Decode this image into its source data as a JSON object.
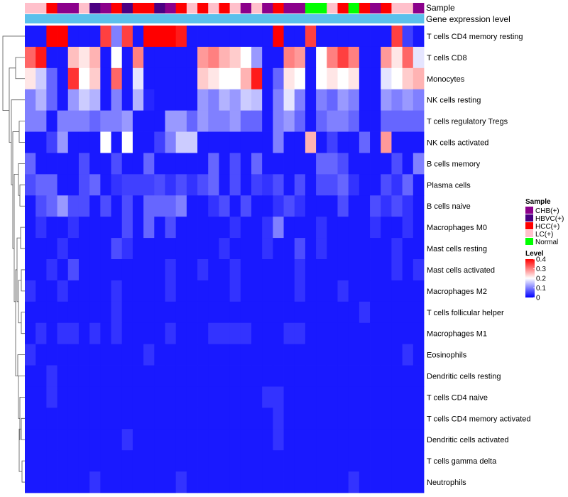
{
  "chart_data": {
    "type": "heatmap",
    "title": "",
    "track_labels": {
      "sample": "Sample",
      "gene_expression": "Gene expression level"
    },
    "rows": [
      "T cells CD4 memory resting",
      "T cells CD8",
      "Monocytes",
      "NK cells resting",
      "T cells regulatory  Tregs",
      "NK cells activated",
      "B cells memory",
      "Plasma cells",
      "B cells naive",
      "Macrophages M0",
      "Mast cells resting",
      "Mast cells activated",
      "Macrophages M2",
      "T cells follicular helper",
      "Macrophages M1",
      "Eosinophils",
      "Dendritic cells resting",
      "T cells CD4 naive",
      "T cells CD4 memory activated",
      "Dendritic cells activated",
      "T cells gamma delta",
      "Neutrophils"
    ],
    "sample_annotation": [
      "LC(+)",
      "LC(+)",
      "HCC(+)",
      "CHB(+)",
      "CHB(+)",
      "LC(+)",
      "HBVC(+)",
      "CHB(+)",
      "HCC(+)",
      "HBVC(+)",
      "HCC(+)",
      "HCC(+)",
      "HBVC(+)",
      "CHB(+)",
      "HCC(+)",
      "LC(+)",
      "HCC(+)",
      "LC(+)",
      "HCC(+)",
      "LC(+)",
      "CHB(+)",
      "LC(+)",
      "CHB(+)",
      "HCC(+)",
      "CHB(+)",
      "CHB(+)",
      "Normal",
      "Normal",
      "LC(+)",
      "HCC(+)",
      "Normal",
      "HCC(+)",
      "CHB(+)",
      "HCC(+)",
      "LC(+)",
      "LC(+)",
      "CHB(+)"
    ],
    "gene_expression_level": [
      "skyblue",
      "skyblue",
      "skyblue",
      "skyblue",
      "skyblue",
      "skyblue",
      "skyblue",
      "skyblue",
      "skyblue",
      "skyblue",
      "skyblue",
      "skyblue",
      "skyblue",
      "skyblue",
      "skyblue",
      "skyblue",
      "skyblue",
      "skyblue",
      "skyblue",
      "skyblue",
      "skyblue",
      "skyblue",
      "skyblue",
      "skyblue",
      "skyblue",
      "skyblue",
      "skyblue",
      "skyblue",
      "skyblue",
      "skyblue",
      "skyblue",
      "skyblue",
      "skyblue",
      "skyblue",
      "skyblue",
      "skyblue",
      "skyblue"
    ],
    "values": [
      [
        0.02,
        0.02,
        0.4,
        0.4,
        0.02,
        0.02,
        0.02,
        0.35,
        0.1,
        0.35,
        0.02,
        0.4,
        0.4,
        0.4,
        0.38,
        0.02,
        0.02,
        0.02,
        0.02,
        0.02,
        0.02,
        0.02,
        0.02,
        0.4,
        0.02,
        0.02,
        0.35,
        0.02,
        0.02,
        0.02,
        0.02,
        0.02,
        0.02,
        0.02,
        0.35,
        0.05,
        0.02
      ],
      [
        0.32,
        0.38,
        0.02,
        0.02,
        0.25,
        0.22,
        0.26,
        0.02,
        0.2,
        0.02,
        0.3,
        0.02,
        0.02,
        0.02,
        0.02,
        0.02,
        0.28,
        0.3,
        0.26,
        0.24,
        0.2,
        0.12,
        0.02,
        0.02,
        0.3,
        0.28,
        0.02,
        0.2,
        0.3,
        0.35,
        0.3,
        0.02,
        0.02,
        0.28,
        0.22,
        0.32,
        0.18
      ],
      [
        0.22,
        0.16,
        0.08,
        0.02,
        0.36,
        0.2,
        0.24,
        0.02,
        0.32,
        0.02,
        0.18,
        0.02,
        0.02,
        0.02,
        0.02,
        0.02,
        0.24,
        0.22,
        0.2,
        0.2,
        0.26,
        0.38,
        0.02,
        0.08,
        0.22,
        0.2,
        0.02,
        0.2,
        0.22,
        0.2,
        0.22,
        0.02,
        0.02,
        0.18,
        0.2,
        0.24,
        0.26
      ],
      [
        0.1,
        0.14,
        0.08,
        0.02,
        0.12,
        0.16,
        0.14,
        0.02,
        0.1,
        0.02,
        0.14,
        0.03,
        0.02,
        0.02,
        0.02,
        0.02,
        0.12,
        0.1,
        0.14,
        0.12,
        0.16,
        0.15,
        0.02,
        0.1,
        0.18,
        0.1,
        0.02,
        0.1,
        0.08,
        0.12,
        0.1,
        0.02,
        0.02,
        0.12,
        0.1,
        0.12,
        0.1
      ],
      [
        0.1,
        0.1,
        0.02,
        0.1,
        0.1,
        0.1,
        0.08,
        0.1,
        0.1,
        0.12,
        0.02,
        0.02,
        0.02,
        0.12,
        0.12,
        0.08,
        0.12,
        0.1,
        0.1,
        0.12,
        0.08,
        0.08,
        0.02,
        0.1,
        0.12,
        0.08,
        0.02,
        0.08,
        0.1,
        0.1,
        0.08,
        0.02,
        0.02,
        0.08,
        0.08,
        0.08,
        0.08
      ],
      [
        0.02,
        0.02,
        0.05,
        0.12,
        0.02,
        0.02,
        0.02,
        0.2,
        0.02,
        0.2,
        0.02,
        0.02,
        0.05,
        0.1,
        0.16,
        0.16,
        0.02,
        0.02,
        0.02,
        0.02,
        0.02,
        0.02,
        0.02,
        0.1,
        0.02,
        0.02,
        0.26,
        0.02,
        0.05,
        0.02,
        0.02,
        0.08,
        0.02,
        0.28,
        0.02,
        0.02,
        0.02
      ],
      [
        0.08,
        0.02,
        0.02,
        0.02,
        0.02,
        0.06,
        0.02,
        0.02,
        0.06,
        0.02,
        0.02,
        0.08,
        0.02,
        0.02,
        0.02,
        0.02,
        0.02,
        0.08,
        0.02,
        0.06,
        0.02,
        0.08,
        0.02,
        0.02,
        0.02,
        0.02,
        0.02,
        0.08,
        0.08,
        0.06,
        0.02,
        0.02,
        0.02,
        0.02,
        0.06,
        0.02,
        0.1
      ],
      [
        0.06,
        0.08,
        0.08,
        0.02,
        0.02,
        0.06,
        0.08,
        0.02,
        0.04,
        0.05,
        0.05,
        0.05,
        0.06,
        0.04,
        0.06,
        0.04,
        0.06,
        0.08,
        0.02,
        0.06,
        0.02,
        0.05,
        0.04,
        0.06,
        0.02,
        0.06,
        0.02,
        0.06,
        0.06,
        0.08,
        0.04,
        0.02,
        0.02,
        0.06,
        0.04,
        0.08,
        0.02
      ],
      [
        0.02,
        0.06,
        0.08,
        0.12,
        0.06,
        0.06,
        0.02,
        0.06,
        0.02,
        0.06,
        0.02,
        0.08,
        0.08,
        0.08,
        0.1,
        0.02,
        0.02,
        0.04,
        0.06,
        0.02,
        0.06,
        0.02,
        0.02,
        0.04,
        0.06,
        0.04,
        0.02,
        0.02,
        0.02,
        0.06,
        0.02,
        0.02,
        0.06,
        0.04,
        0.06,
        0.04,
        0.02
      ],
      [
        0.02,
        0.04,
        0.02,
        0.02,
        0.04,
        0.02,
        0.02,
        0.02,
        0.02,
        0.06,
        0.02,
        0.08,
        0.02,
        0.06,
        0.02,
        0.02,
        0.02,
        0.02,
        0.02,
        0.04,
        0.02,
        0.02,
        0.04,
        0.1,
        0.02,
        0.02,
        0.02,
        0.04,
        0.02,
        0.02,
        0.02,
        0.02,
        0.04,
        0.02,
        0.02,
        0.04,
        0.02
      ],
      [
        0.02,
        0.02,
        0.02,
        0.04,
        0.02,
        0.02,
        0.02,
        0.02,
        0.06,
        0.04,
        0.02,
        0.02,
        0.02,
        0.02,
        0.02,
        0.02,
        0.02,
        0.02,
        0.04,
        0.02,
        0.02,
        0.02,
        0.04,
        0.02,
        0.02,
        0.06,
        0.02,
        0.04,
        0.02,
        0.02,
        0.02,
        0.02,
        0.02,
        0.02,
        0.04,
        0.02,
        0.02
      ],
      [
        0.02,
        0.02,
        0.04,
        0.02,
        0.06,
        0.02,
        0.02,
        0.02,
        0.02,
        0.02,
        0.02,
        0.02,
        0.02,
        0.04,
        0.02,
        0.02,
        0.04,
        0.02,
        0.02,
        0.04,
        0.02,
        0.02,
        0.02,
        0.02,
        0.02,
        0.04,
        0.02,
        0.02,
        0.02,
        0.02,
        0.02,
        0.02,
        0.02,
        0.02,
        0.04,
        0.02,
        0.04
      ],
      [
        0.04,
        0.02,
        0.02,
        0.04,
        0.02,
        0.02,
        0.02,
        0.02,
        0.04,
        0.02,
        0.02,
        0.02,
        0.02,
        0.04,
        0.02,
        0.02,
        0.02,
        0.02,
        0.02,
        0.04,
        0.02,
        0.02,
        0.02,
        0.02,
        0.02,
        0.04,
        0.02,
        0.02,
        0.02,
        0.04,
        0.02,
        0.02,
        0.02,
        0.02,
        0.02,
        0.02,
        0.02
      ],
      [
        0.02,
        0.02,
        0.02,
        0.02,
        0.02,
        0.02,
        0.02,
        0.02,
        0.04,
        0.02,
        0.02,
        0.02,
        0.02,
        0.02,
        0.02,
        0.02,
        0.02,
        0.02,
        0.02,
        0.02,
        0.02,
        0.02,
        0.02,
        0.02,
        0.02,
        0.02,
        0.02,
        0.02,
        0.02,
        0.02,
        0.02,
        0.04,
        0.02,
        0.02,
        0.02,
        0.02,
        0.02
      ],
      [
        0.02,
        0.04,
        0.02,
        0.04,
        0.04,
        0.02,
        0.04,
        0.02,
        0.04,
        0.02,
        0.02,
        0.02,
        0.02,
        0.04,
        0.02,
        0.02,
        0.02,
        0.04,
        0.04,
        0.04,
        0.04,
        0.02,
        0.02,
        0.02,
        0.04,
        0.04,
        0.02,
        0.02,
        0.02,
        0.02,
        0.02,
        0.02,
        0.02,
        0.02,
        0.02,
        0.02,
        0.02
      ],
      [
        0.04,
        0.02,
        0.02,
        0.02,
        0.02,
        0.02,
        0.02,
        0.02,
        0.02,
        0.02,
        0.02,
        0.04,
        0.02,
        0.02,
        0.02,
        0.02,
        0.02,
        0.02,
        0.02,
        0.02,
        0.02,
        0.02,
        0.02,
        0.02,
        0.02,
        0.02,
        0.02,
        0.02,
        0.02,
        0.02,
        0.02,
        0.02,
        0.02,
        0.02,
        0.02,
        0.04,
        0.02
      ],
      [
        0.02,
        0.02,
        0.04,
        0.02,
        0.02,
        0.02,
        0.02,
        0.02,
        0.02,
        0.02,
        0.02,
        0.02,
        0.02,
        0.02,
        0.02,
        0.02,
        0.02,
        0.02,
        0.02,
        0.02,
        0.02,
        0.02,
        0.02,
        0.02,
        0.02,
        0.02,
        0.02,
        0.02,
        0.02,
        0.02,
        0.02,
        0.02,
        0.02,
        0.02,
        0.02,
        0.02,
        0.02
      ],
      [
        0.02,
        0.02,
        0.04,
        0.02,
        0.02,
        0.02,
        0.02,
        0.02,
        0.02,
        0.02,
        0.02,
        0.02,
        0.02,
        0.02,
        0.02,
        0.02,
        0.02,
        0.02,
        0.02,
        0.02,
        0.02,
        0.02,
        0.04,
        0.04,
        0.02,
        0.02,
        0.02,
        0.02,
        0.02,
        0.02,
        0.02,
        0.02,
        0.02,
        0.02,
        0.02,
        0.02,
        0.02
      ],
      [
        0.02,
        0.02,
        0.02,
        0.02,
        0.02,
        0.02,
        0.02,
        0.02,
        0.02,
        0.02,
        0.02,
        0.02,
        0.02,
        0.02,
        0.02,
        0.02,
        0.02,
        0.02,
        0.02,
        0.02,
        0.02,
        0.02,
        0.02,
        0.04,
        0.02,
        0.02,
        0.02,
        0.02,
        0.02,
        0.02,
        0.02,
        0.02,
        0.02,
        0.02,
        0.02,
        0.02,
        0.02
      ],
      [
        0.02,
        0.02,
        0.02,
        0.02,
        0.02,
        0.02,
        0.02,
        0.02,
        0.02,
        0.04,
        0.02,
        0.02,
        0.02,
        0.02,
        0.02,
        0.02,
        0.02,
        0.02,
        0.02,
        0.02,
        0.02,
        0.02,
        0.02,
        0.04,
        0.02,
        0.02,
        0.02,
        0.02,
        0.02,
        0.02,
        0.02,
        0.02,
        0.02,
        0.02,
        0.02,
        0.02,
        0.02
      ],
      [
        0.02,
        0.02,
        0.02,
        0.02,
        0.02,
        0.02,
        0.02,
        0.02,
        0.02,
        0.02,
        0.02,
        0.02,
        0.02,
        0.02,
        0.02,
        0.02,
        0.02,
        0.02,
        0.02,
        0.02,
        0.02,
        0.02,
        0.02,
        0.02,
        0.02,
        0.02,
        0.02,
        0.02,
        0.02,
        0.02,
        0.02,
        0.02,
        0.02,
        0.02,
        0.02,
        0.02,
        0.02
      ],
      [
        0.02,
        0.02,
        0.02,
        0.02,
        0.02,
        0.02,
        0.04,
        0.02,
        0.02,
        0.02,
        0.02,
        0.02,
        0.02,
        0.02,
        0.04,
        0.02,
        0.02,
        0.02,
        0.02,
        0.02,
        0.02,
        0.02,
        0.02,
        0.02,
        0.02,
        0.02,
        0.02,
        0.02,
        0.02,
        0.02,
        0.04,
        0.02,
        0.02,
        0.02,
        0.02,
        0.02,
        0.02
      ]
    ],
    "legend_sample": {
      "title": "Sample",
      "entries": [
        {
          "label": "CHB(+)",
          "color": "#8b008b"
        },
        {
          "label": "HBVC(+)",
          "color": "#4b0082"
        },
        {
          "label": "HCC(+)",
          "color": "#ff0000"
        },
        {
          "label": "LC(+)",
          "color": "#ffc0cb"
        },
        {
          "label": "Normal",
          "color": "#00ff00"
        }
      ]
    },
    "legend_level": {
      "title": "Level",
      "ticks": [
        "0.4",
        "0.3",
        "0.2",
        "0.1",
        "0"
      ],
      "min": 0,
      "max": 0.4
    },
    "colors": {
      "low": "#0000ff",
      "mid": "#ffffff",
      "high": "#ff0000",
      "gene_track": "#5bc0eb"
    }
  }
}
